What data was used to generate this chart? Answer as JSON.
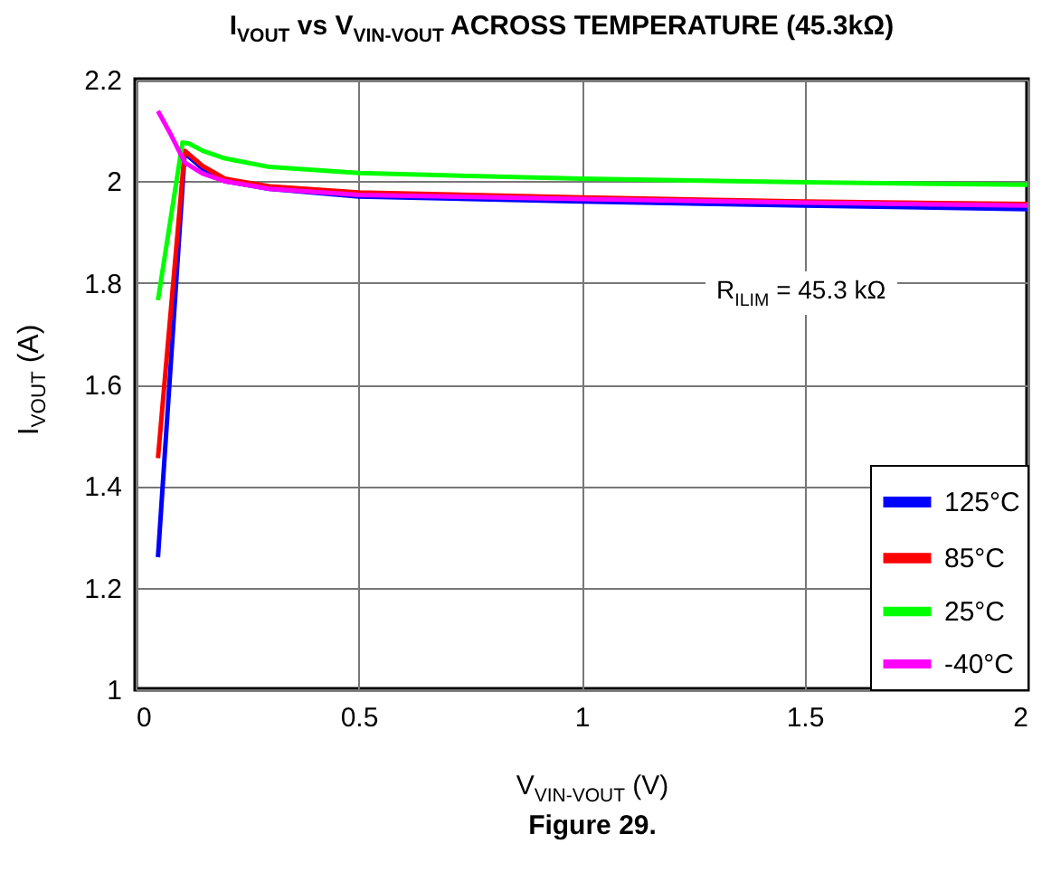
{
  "chart_data": {
    "type": "line",
    "title": "I$_{VOUT}$ vs V$_{VIN-VOUT}$ ACROSS TEMPERATURE (45.3kΩ)",
    "xlabel": "V$_{VIN-VOUT}$ (V)",
    "ylabel": "I$_{VOUT}$ (A)",
    "annotations": [
      "R$_{ILIM}$ = 45.3 kΩ",
      "Figure 29."
    ],
    "xlim": [
      0,
      2
    ],
    "xticks": [
      0,
      0.5,
      1,
      1.5,
      2
    ],
    "ylim": [
      1,
      2.2
    ],
    "yticks": [
      1,
      1.2,
      1.4,
      1.6,
      1.8,
      2,
      2.2
    ],
    "grid": true,
    "legend": "bottom right",
    "series": [
      {
        "name": "125°C",
        "color": "#0000ff",
        "x": [
          0.05,
          0.11,
          0.15,
          0.2,
          0.3,
          0.5,
          1,
          1.5,
          2
        ],
        "values": [
          1.26,
          2.055,
          2.025,
          2.0,
          1.985,
          1.97,
          1.96,
          1.952,
          1.945
        ]
      },
      {
        "name": "85°C",
        "color": "#ff0000",
        "x": [
          0.05,
          0.11,
          0.15,
          0.2,
          0.3,
          0.5,
          1,
          1.5,
          2
        ],
        "values": [
          1.455,
          2.06,
          2.03,
          2.005,
          1.99,
          1.978,
          1.968,
          1.96,
          1.955
        ]
      },
      {
        "name": "25°C",
        "color": "#00ff00",
        "x": [
          0.05,
          0.105,
          0.12,
          0.15,
          0.2,
          0.3,
          0.5,
          1,
          1.5,
          2
        ],
        "values": [
          1.766,
          2.076,
          2.074,
          2.06,
          2.045,
          2.028,
          2.016,
          2.005,
          1.998,
          1.993
        ]
      },
      {
        "name": "-40°C",
        "color": "#ff00ff",
        "x": [
          0.05,
          0.08,
          0.11,
          0.15,
          0.2,
          0.3,
          0.5,
          1,
          1.5,
          2
        ],
        "values": [
          2.138,
          2.09,
          2.037,
          2.015,
          2.0,
          1.985,
          1.973,
          1.965,
          1.958,
          1.952
        ]
      }
    ]
  }
}
